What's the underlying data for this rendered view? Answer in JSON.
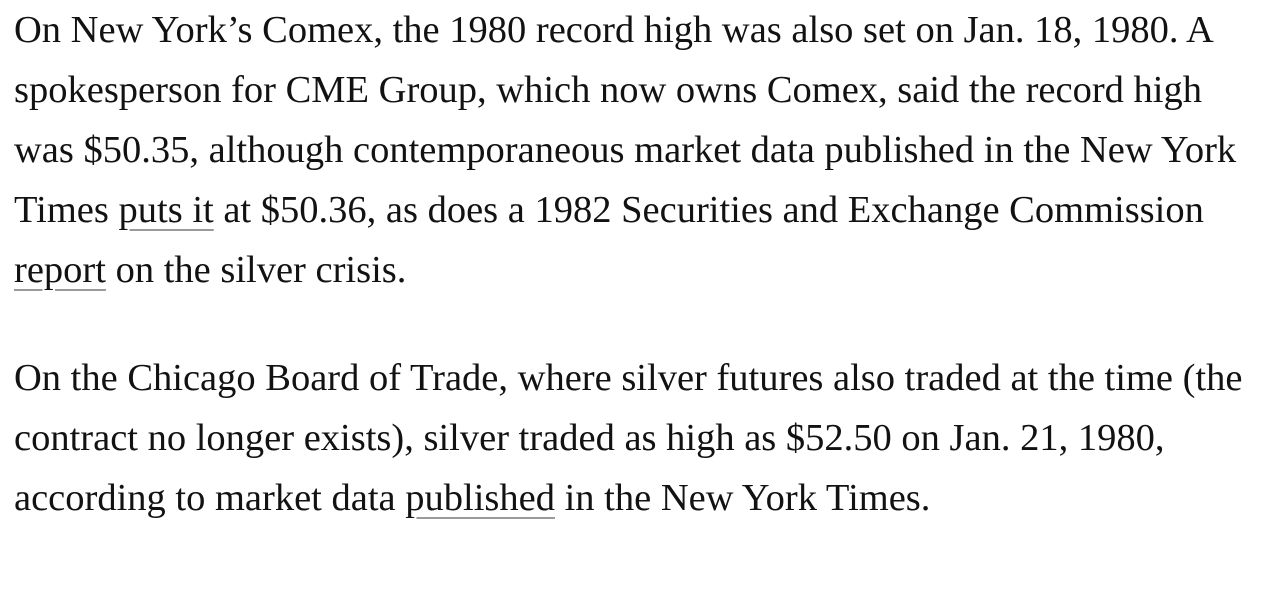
{
  "paragraphs": [
    {
      "segments": [
        {
          "text": "On New York’s Comex, the 1980 record high was also set on Jan. 18, 1980. A spokesperson for CME Group, which now owns Comex, said the record high was $50.35, although contemporaneous market data published in the New York Times ",
          "link": false
        },
        {
          "text": "puts it",
          "link": true
        },
        {
          "text": " at $50.36, as does a 1982 Securities and Exchange Commission ",
          "link": false
        },
        {
          "text": "report",
          "link": true
        },
        {
          "text": " on the silver crisis.",
          "link": false
        }
      ]
    },
    {
      "segments": [
        {
          "text": "On the Chicago Board of Trade, where silver futures also traded at the time (the contract no longer exists), silver traded as high as $52.50 on Jan. 21, 1980, according to market data ",
          "link": false
        },
        {
          "text": "published",
          "link": true
        },
        {
          "text": " in the New York Times.",
          "link": false
        }
      ]
    }
  ]
}
